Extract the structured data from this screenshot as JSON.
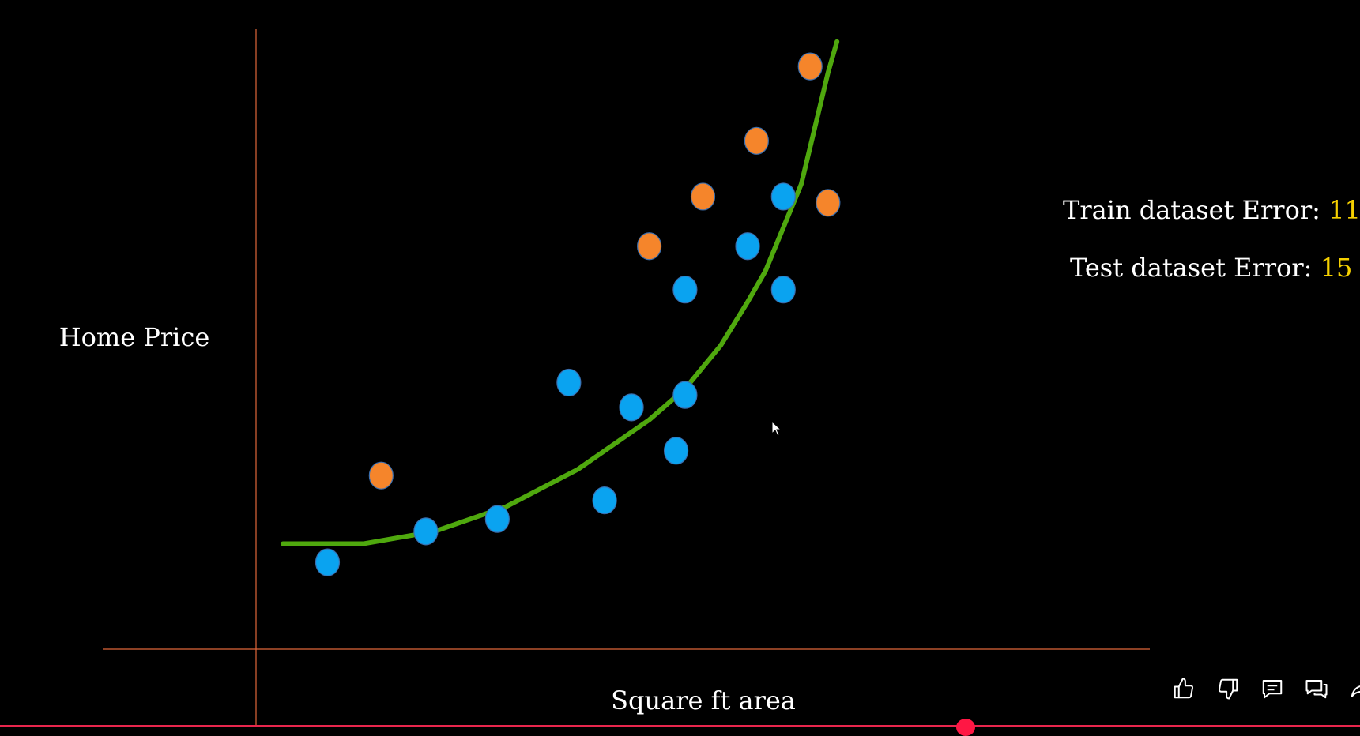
{
  "chart_data": {
    "type": "scatter",
    "xlabel": "Square ft area",
    "ylabel": "Home Price",
    "xlim": [
      0,
      100
    ],
    "ylim": [
      0,
      100
    ],
    "grid": false,
    "series": [
      {
        "color": "#0aa3f0",
        "points": [
          [
            8,
            14
          ],
          [
            19,
            19
          ],
          [
            27,
            21
          ],
          [
            35,
            43
          ],
          [
            39,
            24
          ],
          [
            42,
            39
          ],
          [
            47,
            32
          ],
          [
            48,
            41
          ],
          [
            48,
            58
          ],
          [
            55,
            65
          ],
          [
            59,
            58
          ],
          [
            59,
            73
          ]
        ]
      },
      {
        "color": "#f5852b",
        "points": [
          [
            14,
            28
          ],
          [
            44,
            65
          ],
          [
            50,
            73
          ],
          [
            56,
            82
          ],
          [
            62,
            94
          ],
          [
            64,
            72
          ]
        ]
      },
      {
        "type": "line",
        "color": "#4fa80e",
        "points": [
          [
            3,
            17
          ],
          [
            8,
            17
          ],
          [
            12,
            17
          ],
          [
            16,
            18
          ],
          [
            20,
            19
          ],
          [
            24,
            21
          ],
          [
            28,
            23
          ],
          [
            32,
            26
          ],
          [
            36,
            29
          ],
          [
            40,
            33
          ],
          [
            44,
            37
          ],
          [
            48,
            42
          ],
          [
            52,
            49
          ],
          [
            55,
            56
          ],
          [
            57,
            61
          ],
          [
            59,
            68
          ],
          [
            61,
            75
          ],
          [
            62,
            81
          ],
          [
            63,
            87
          ],
          [
            64,
            93
          ],
          [
            65,
            98
          ]
        ]
      }
    ]
  },
  "annotations": {
    "train": {
      "label": "Train dataset Error: ",
      "value": "11"
    },
    "test": {
      "label": "Test dataset Error: ",
      "value": "15"
    }
  },
  "player": {
    "controls": [
      "thumbs-up-icon",
      "thumbs-down-icon",
      "comment-icon",
      "chat-icon",
      "share-icon"
    ],
    "progress": 0.71
  }
}
